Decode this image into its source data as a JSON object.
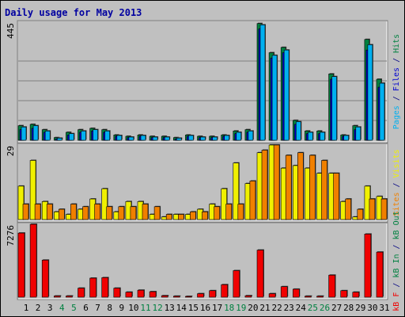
{
  "chart_data": {
    "type": "bar",
    "title": "Daily usage for May 2013",
    "categories": [
      "1",
      "2",
      "3",
      "4",
      "5",
      "6",
      "7",
      "8",
      "9",
      "10",
      "11",
      "12",
      "13",
      "14",
      "15",
      "16",
      "17",
      "18",
      "19",
      "20",
      "21",
      "22",
      "23",
      "24",
      "25",
      "26",
      "27",
      "28",
      "29",
      "30",
      "31"
    ],
    "weekend_days": [
      "4",
      "5",
      "11",
      "12",
      "18",
      "19",
      "25",
      "26"
    ],
    "panels": [
      {
        "id": "top",
        "max_label": "445",
        "ymax": 445,
        "series": [
          {
            "name": "Hits",
            "color": "#008040",
            "values": [
              55,
              60,
              40,
              10,
              30,
              40,
              45,
              40,
              20,
              15,
              20,
              15,
              15,
              10,
              20,
              15,
              15,
              20,
              35,
              40,
              440,
              330,
              350,
              75,
              35,
              35,
              250,
              20,
              55,
              380,
              230
            ]
          },
          {
            "name": "Files",
            "color": "#0000d0",
            "values": [
              40,
              45,
              30,
              5,
              20,
              30,
              35,
              30,
              15,
              10,
              15,
              10,
              10,
              5,
              15,
              10,
              10,
              15,
              25,
              30,
              420,
              310,
              330,
              60,
              25,
              25,
              230,
              15,
              40,
              340,
              200
            ]
          },
          {
            "name": "Pages",
            "color": "#00b0f0",
            "values": [
              50,
              55,
              35,
              8,
              25,
              35,
              40,
              35,
              18,
              12,
              18,
              12,
              12,
              8,
              18,
              12,
              12,
              18,
              30,
              35,
              435,
              320,
              340,
              70,
              30,
              30,
              240,
              18,
              50,
              360,
              215
            ]
          }
        ],
        "legend": [
          {
            "text": "Pages",
            "color": "#00b0f0"
          },
          {
            "text": " / ",
            "color": "#000080"
          },
          {
            "text": "Files",
            "color": "#0000d0"
          },
          {
            "text": " / ",
            "color": "#000080"
          },
          {
            "text": "Hits",
            "color": "#008040"
          }
        ]
      },
      {
        "id": "middle",
        "max_label": "29",
        "ymax": 29,
        "series": [
          {
            "name": "Visits",
            "color": "#f0f000",
            "values": [
              13,
              23,
              7,
              3,
              2,
              4,
              8,
              12,
              3,
              7,
              7,
              2,
              1,
              2,
              2,
              4,
              6,
              12,
              22,
              14,
              26,
              29,
              20,
              21,
              20,
              18,
              18,
              7,
              1,
              13,
              9
            ]
          },
          {
            "name": "Sites",
            "color": "#f08000",
            "values": [
              6,
              6,
              6,
              4,
              6,
              5,
              6,
              5,
              5,
              5,
              6,
              5,
              2,
              2,
              3,
              3,
              5,
              6,
              6,
              15,
              27,
              29,
              25,
              26,
              25,
              23,
              18,
              8,
              4,
              8,
              8
            ]
          }
        ],
        "legend": [
          {
            "text": "Sites",
            "color": "#f08000"
          },
          {
            "text": " / ",
            "color": "#000080"
          },
          {
            "text": "Visits",
            "color": "#f0f000"
          }
        ]
      },
      {
        "id": "bottom",
        "max_label": "7276",
        "ymax": 7276,
        "series": [
          {
            "name": "kB F",
            "color": "#f00000",
            "values": [
              6400,
              7276,
              3700,
              120,
              120,
              900,
              1900,
              1950,
              900,
              500,
              700,
              550,
              150,
              100,
              80,
              350,
              650,
              1250,
              2650,
              150,
              4700,
              350,
              1050,
              800,
              100,
              100,
              2200,
              650,
              500,
              6300,
              4500
            ]
          }
        ],
        "legend": [
          {
            "text": "kB F",
            "color": "#f00000"
          },
          {
            "text": " / ",
            "color": "#000080"
          },
          {
            "text": "kB In",
            "color": "#008040"
          },
          {
            "text": " / ",
            "color": "#000080"
          },
          {
            "text": "kB Out",
            "color": "#008040"
          }
        ]
      }
    ]
  },
  "colors": {
    "background": "#c0c0c0",
    "title": "#0000a0",
    "weekday_label": "#000000",
    "weekend_label": "#008040",
    "bar_shadow": "#404040"
  }
}
